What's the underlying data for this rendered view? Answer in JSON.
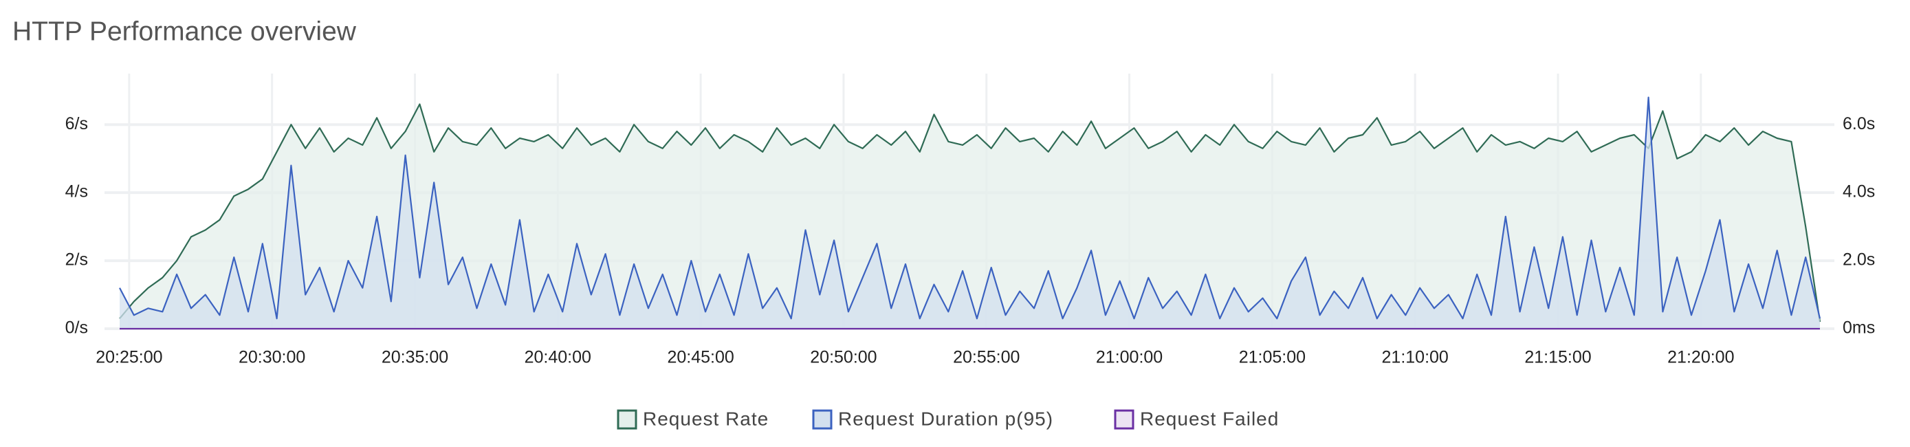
{
  "chart_data": {
    "type": "line",
    "title": "HTTP Performance overview",
    "x": [
      "20:24:40",
      "20:25:10",
      "20:25:40",
      "20:26:10",
      "20:26:40",
      "20:27:10",
      "20:27:40",
      "20:28:10",
      "20:28:40",
      "20:29:10",
      "20:29:40",
      "20:30:10",
      "20:30:40",
      "20:31:10",
      "20:31:40",
      "20:32:10",
      "20:32:40",
      "20:33:10",
      "20:33:40",
      "20:34:10",
      "20:34:40",
      "20:35:10",
      "20:35:40",
      "20:36:10",
      "20:36:40",
      "20:37:10",
      "20:37:40",
      "20:38:10",
      "20:38:40",
      "20:39:10",
      "20:39:40",
      "20:40:10",
      "20:40:40",
      "20:41:10",
      "20:41:40",
      "20:42:10",
      "20:42:40",
      "20:43:10",
      "20:43:40",
      "20:44:10",
      "20:44:40",
      "20:45:10",
      "20:45:40",
      "20:46:10",
      "20:46:40",
      "20:47:10",
      "20:47:40",
      "20:48:10",
      "20:48:40",
      "20:49:10",
      "20:49:40",
      "20:50:10",
      "20:50:40",
      "20:51:10",
      "20:51:40",
      "20:52:10",
      "20:52:40",
      "20:53:10",
      "20:53:40",
      "20:54:10",
      "20:54:40",
      "20:55:10",
      "20:55:40",
      "20:56:10",
      "20:56:40",
      "20:57:10",
      "20:57:40",
      "20:58:10",
      "20:58:40",
      "20:59:10",
      "20:59:40",
      "21:00:10",
      "21:00:40",
      "21:01:10",
      "21:01:40",
      "21:02:10",
      "21:02:40",
      "21:03:10",
      "21:03:40",
      "21:04:10",
      "21:04:40",
      "21:05:10",
      "21:05:40",
      "21:06:10",
      "21:06:40",
      "21:07:10",
      "21:07:40",
      "21:08:10",
      "21:08:40",
      "21:09:10",
      "21:09:40",
      "21:10:10",
      "21:10:40",
      "21:11:10",
      "21:11:40",
      "21:12:10",
      "21:12:40",
      "21:13:10",
      "21:13:40",
      "21:14:10",
      "21:14:40",
      "21:15:10",
      "21:15:40",
      "21:16:10",
      "21:16:40",
      "21:17:10",
      "21:17:40",
      "21:18:10",
      "21:18:40",
      "21:19:10",
      "21:19:40",
      "21:20:10",
      "21:20:40",
      "21:21:10",
      "21:21:40",
      "21:22:10",
      "21:22:40",
      "21:23:10",
      "21:23:40",
      "21:24:10"
    ],
    "series": [
      {
        "name": "Request Rate",
        "color": "#2f6b55",
        "fill": "#e4efeb",
        "values": [
          0.3,
          0.8,
          1.2,
          1.5,
          2.0,
          2.7,
          2.9,
          3.2,
          3.9,
          4.1,
          4.4,
          5.2,
          6.0,
          5.3,
          5.9,
          5.2,
          5.6,
          5.4,
          6.2,
          5.3,
          5.8,
          6.6,
          5.2,
          5.9,
          5.5,
          5.4,
          5.9,
          5.3,
          5.6,
          5.5,
          5.7,
          5.3,
          5.9,
          5.4,
          5.6,
          5.2,
          6.0,
          5.5,
          5.3,
          5.8,
          5.4,
          5.9,
          5.3,
          5.7,
          5.5,
          5.2,
          5.9,
          5.4,
          5.6,
          5.3,
          6.0,
          5.5,
          5.3,
          5.7,
          5.4,
          5.8,
          5.2,
          6.3,
          5.5,
          5.4,
          5.7,
          5.3,
          5.9,
          5.5,
          5.6,
          5.2,
          5.8,
          5.4,
          6.1,
          5.3,
          5.6,
          5.9,
          5.3,
          5.5,
          5.8,
          5.2,
          5.7,
          5.4,
          6.0,
          5.5,
          5.3,
          5.8,
          5.5,
          5.4,
          5.9,
          5.2,
          5.6,
          5.7,
          6.2,
          5.4,
          5.5,
          5.8,
          5.3,
          5.6,
          5.9,
          5.2,
          5.7,
          5.4,
          5.5,
          5.3,
          5.6,
          5.5,
          5.8,
          5.2,
          5.4,
          5.6,
          5.7,
          5.3,
          6.4,
          5.0,
          5.2,
          5.7,
          5.5,
          5.9,
          5.4,
          5.8,
          5.6,
          5.5,
          3.0,
          0.2
        ]
      },
      {
        "name": "Request Duration p(95)",
        "color": "#3b62c0",
        "fill": "#d3e0ef",
        "axis": "y2",
        "values": [
          1.2,
          0.4,
          0.6,
          0.5,
          1.6,
          0.6,
          1.0,
          0.4,
          2.1,
          0.5,
          2.5,
          0.3,
          4.8,
          1.0,
          1.8,
          0.5,
          2.0,
          1.2,
          3.3,
          0.8,
          5.1,
          1.5,
          4.3,
          1.3,
          2.1,
          0.6,
          1.9,
          0.7,
          3.2,
          0.5,
          1.6,
          0.5,
          2.5,
          1.0,
          2.2,
          0.4,
          1.9,
          0.6,
          1.6,
          0.4,
          2.0,
          0.5,
          1.6,
          0.4,
          2.2,
          0.6,
          1.2,
          0.3,
          2.9,
          1.0,
          2.6,
          0.5,
          1.5,
          2.5,
          0.6,
          1.9,
          0.3,
          1.3,
          0.5,
          1.7,
          0.3,
          1.8,
          0.4,
          1.1,
          0.6,
          1.7,
          0.3,
          1.2,
          2.3,
          0.4,
          1.4,
          0.3,
          1.5,
          0.6,
          1.1,
          0.4,
          1.6,
          0.3,
          1.2,
          0.5,
          0.9,
          0.3,
          1.4,
          2.1,
          0.4,
          1.1,
          0.6,
          1.5,
          0.3,
          1.0,
          0.4,
          1.2,
          0.6,
          1.0,
          0.3,
          1.6,
          0.4,
          3.3,
          0.5,
          2.4,
          0.6,
          2.7,
          0.4,
          2.6,
          0.5,
          1.8,
          0.4,
          6.8,
          0.5,
          2.1,
          0.4,
          1.7,
          3.2,
          0.5,
          1.9,
          0.6,
          2.3,
          0.4,
          2.1,
          0.3
        ]
      },
      {
        "name": "Request Failed",
        "color": "#6a2fa3",
        "fill": "#ece3f3",
        "values": [
          0,
          0,
          0,
          0,
          0,
          0,
          0,
          0,
          0,
          0,
          0,
          0,
          0,
          0,
          0,
          0,
          0,
          0,
          0,
          0,
          0,
          0,
          0,
          0,
          0,
          0,
          0,
          0,
          0,
          0,
          0,
          0,
          0,
          0,
          0,
          0,
          0,
          0,
          0,
          0,
          0,
          0,
          0,
          0,
          0,
          0,
          0,
          0,
          0,
          0,
          0,
          0,
          0,
          0,
          0,
          0,
          0,
          0,
          0,
          0,
          0,
          0,
          0,
          0,
          0,
          0,
          0,
          0,
          0,
          0,
          0,
          0,
          0,
          0,
          0,
          0,
          0,
          0,
          0,
          0,
          0,
          0,
          0,
          0,
          0,
          0,
          0,
          0,
          0,
          0,
          0,
          0,
          0,
          0,
          0,
          0,
          0,
          0,
          0,
          0,
          0,
          0,
          0,
          0,
          0,
          0,
          0,
          0,
          0,
          0,
          0,
          0,
          0,
          0,
          0,
          0,
          0,
          0,
          0,
          0
        ]
      }
    ],
    "xlim": [
      "20:24:40",
      "21:24:10"
    ],
    "xticks": [
      "20:25:00",
      "20:30:00",
      "20:35:00",
      "20:40:00",
      "20:45:00",
      "20:50:00",
      "20:55:00",
      "21:00:00",
      "21:05:00",
      "21:10:00",
      "21:15:00",
      "21:20:00"
    ],
    "ylim": [
      0,
      7.5
    ],
    "yticks": [
      {
        "value": 0,
        "label": "0/s"
      },
      {
        "value": 2,
        "label": "2/s"
      },
      {
        "value": 4,
        "label": "4/s"
      },
      {
        "value": 6,
        "label": "6/s"
      }
    ],
    "y2lim": [
      0,
      7.5
    ],
    "y2ticks": [
      {
        "value": 0,
        "label": "0ms"
      },
      {
        "value": 2,
        "label": "2.0s"
      },
      {
        "value": 4,
        "label": "4.0s"
      },
      {
        "value": 6,
        "label": "6.0s"
      }
    ],
    "grid": true,
    "legend": "bottom"
  }
}
